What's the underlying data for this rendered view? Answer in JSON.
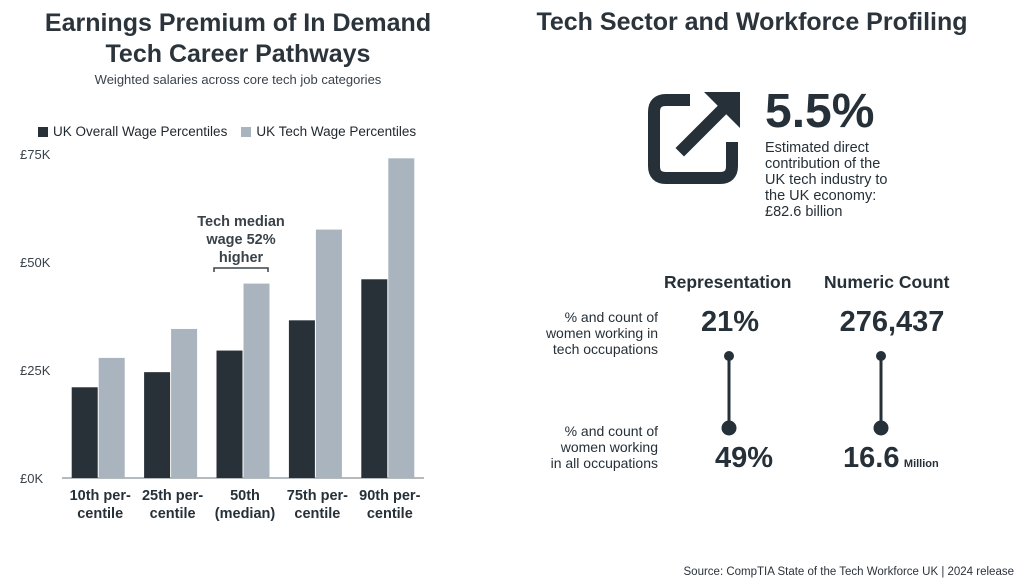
{
  "left": {
    "title_line1": "Earnings Premium of In Demand",
    "title_line2": "Tech Career Pathways",
    "subtitle": "Weighted salaries across core tech job categories",
    "annotation": [
      "Tech median",
      "wage 52%",
      "higher"
    ]
  },
  "chart_data": {
    "type": "bar",
    "title": "Earnings Premium of In Demand Tech Career Pathways",
    "subtitle": "Weighted salaries across core tech job categories",
    "categories": [
      [
        "10th per-",
        "centile"
      ],
      [
        "25th per-",
        "centile"
      ],
      [
        "50th",
        "(median)"
      ],
      [
        "75th per-",
        "centile"
      ],
      [
        "90th per-",
        "centile"
      ]
    ],
    "series": [
      {
        "name": "UK Overall Wage Percentiles",
        "color": "#283038",
        "values": [
          21000,
          24500,
          29500,
          36500,
          46000
        ]
      },
      {
        "name": "UK Tech Wage Percentiles",
        "color": "#a9b4bf",
        "values": [
          27800,
          34500,
          45000,
          57500,
          74000
        ]
      }
    ],
    "yticks": [
      0,
      25000,
      50000,
      75000
    ],
    "ytick_labels": [
      "£0K",
      "£25K",
      "£50K",
      "£75K"
    ],
    "ylim": [
      0,
      75000
    ],
    "legend_position": "top-left",
    "grid": false
  },
  "right": {
    "title": "Tech Sector and Workforce Profiling",
    "headline_value": "5.5%",
    "headline_desc": [
      "Estimated direct",
      "contribution of the",
      "UK tech industry to",
      "the UK economy:",
      "£82.6 billion"
    ],
    "col_representation": "Representation",
    "col_count": "Numeric Count",
    "row1_label": [
      "% and count of",
      "women working in",
      "tech occupations"
    ],
    "row2_label": [
      "% and count of",
      "women working",
      "in all occupations"
    ],
    "rep_tech": "21%",
    "rep_all": "49%",
    "count_tech": "276,437",
    "count_all": "16.6",
    "count_all_unit": "Million",
    "icon": "external-link-icon"
  },
  "source": "Source: CompTIA State of the Tech Workforce UK | 2024 release"
}
